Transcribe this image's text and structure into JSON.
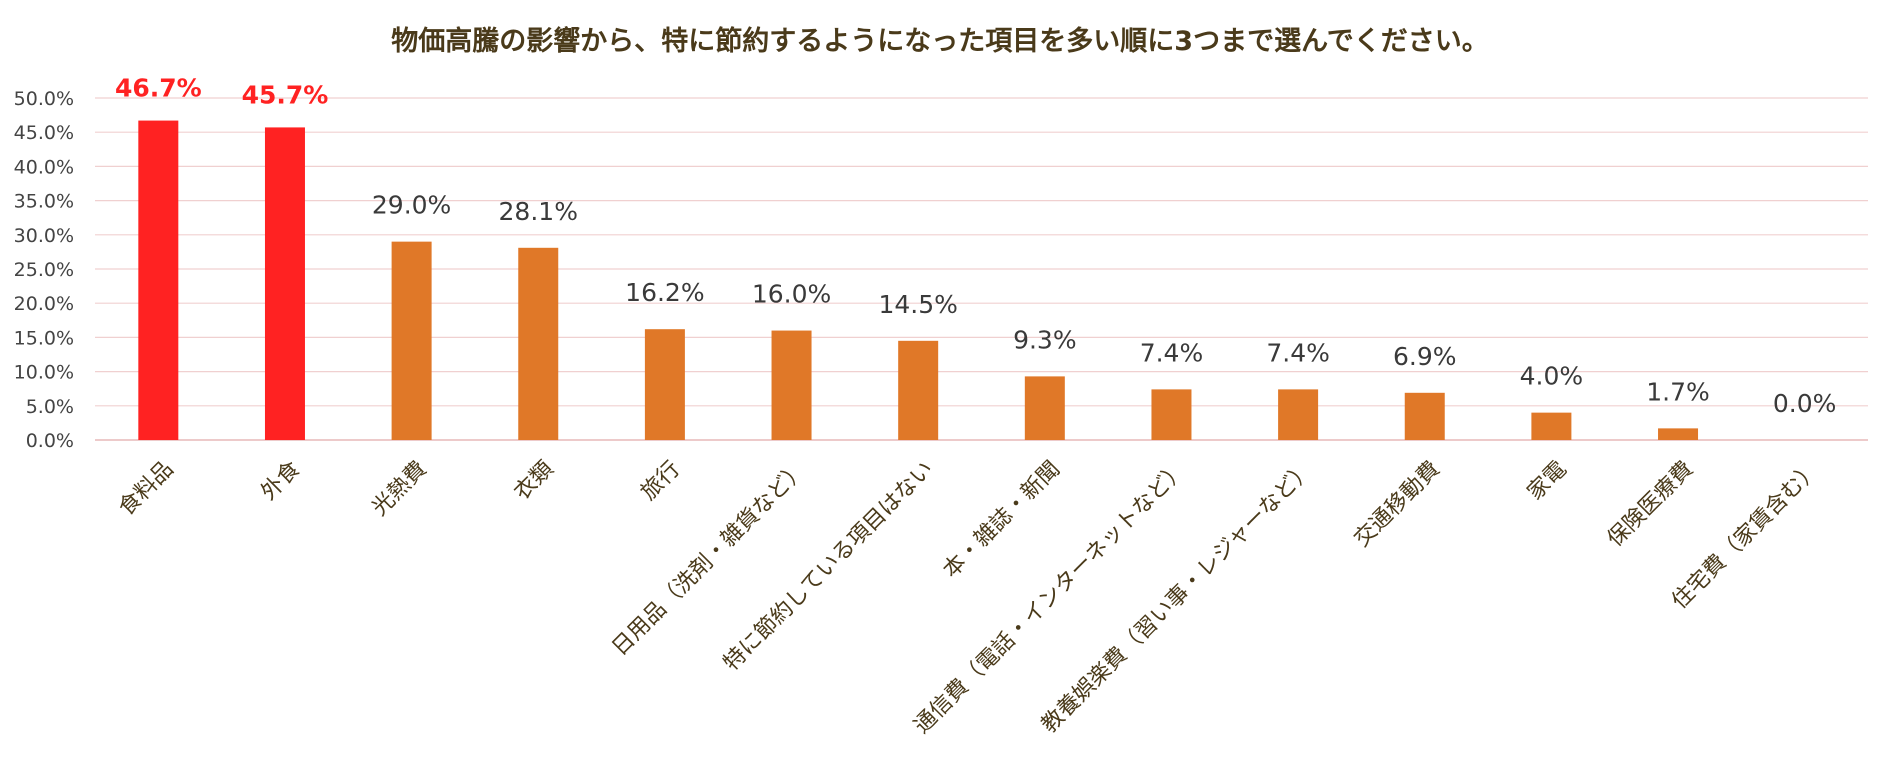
{
  "chart_data": {
    "type": "bar",
    "title": "物価高騰の影響から、特に節約するようになった項目を多い順に3つまで選んでください。",
    "categories": [
      "食料品",
      "外食",
      "光熱費",
      "衣類",
      "旅行",
      "日用品（洗剤・雑貨など）",
      "特に節約している項目はない",
      "本・雑誌・新聞",
      "通信費（電話・インターネットなど）",
      "教養娯楽費（習い事・レジャーなど）",
      "交通移動費",
      "家電",
      "保険医療費",
      "住宅費（家賃含む）"
    ],
    "values": [
      46.7,
      45.7,
      29.0,
      28.1,
      16.2,
      16.0,
      14.5,
      9.3,
      7.4,
      7.4,
      6.9,
      4.0,
      1.7,
      0.0
    ],
    "value_labels": [
      "46.7%",
      "45.7%",
      "29.0%",
      "28.1%",
      "16.2%",
      "16.0%",
      "14.5%",
      "9.3%",
      "7.4%",
      "7.4%",
      "6.9%",
      "4.0%",
      "1.7%",
      "0.0%"
    ],
    "highlight": [
      true,
      true,
      false,
      false,
      false,
      false,
      false,
      false,
      false,
      false,
      false,
      false,
      false,
      false
    ],
    "ylim": [
      0,
      50
    ],
    "yticks": [
      "0.0%",
      "5.0%",
      "10.0%",
      "15.0%",
      "20.0%",
      "25.0%",
      "30.0%",
      "35.0%",
      "40.0%",
      "45.0%",
      "50.0%"
    ],
    "xlabel": "",
    "ylabel": "",
    "grid": true,
    "colors": {
      "highlight": "#ff2222",
      "default": "#e07828",
      "grid": "#f0d0d0",
      "title": "#4a3a1a"
    }
  }
}
